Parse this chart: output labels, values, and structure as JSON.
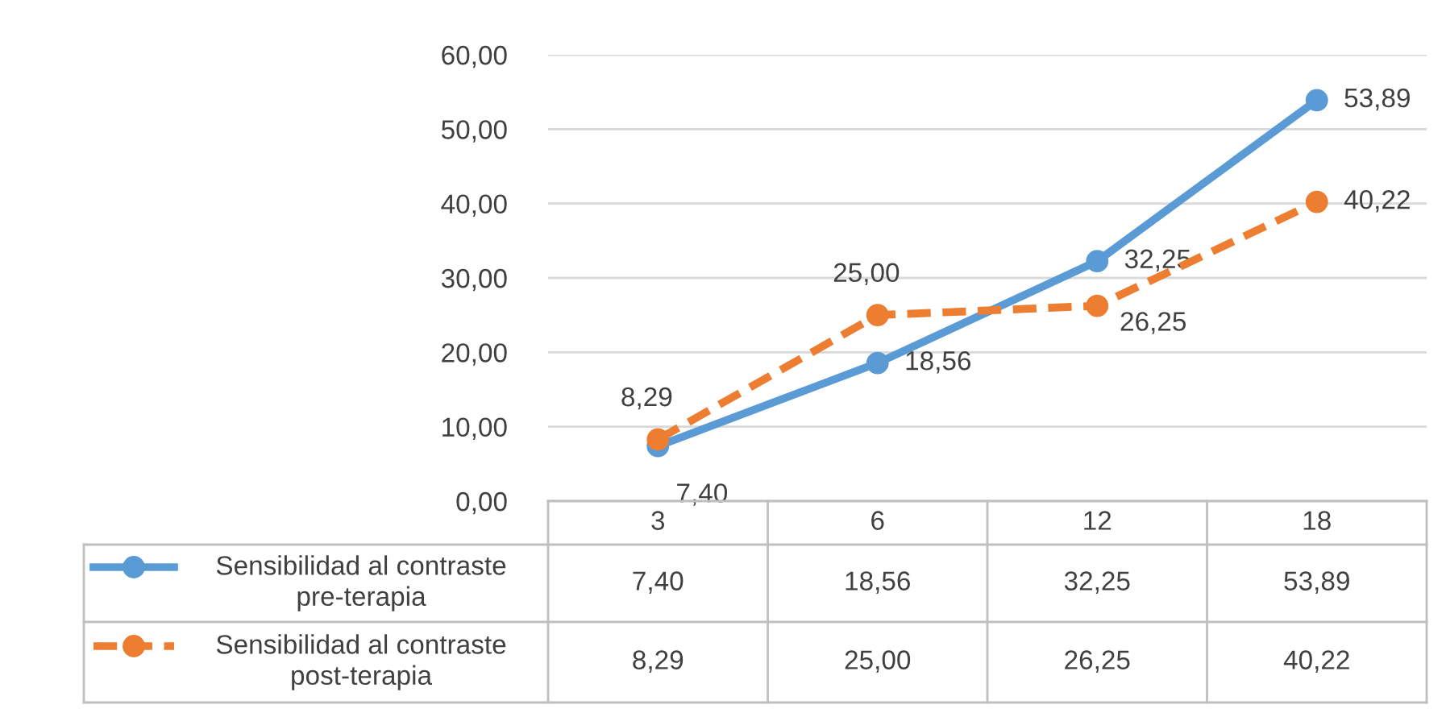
{
  "chart_data": {
    "type": "line",
    "categories": [
      "3",
      "6",
      "12",
      "18"
    ],
    "series": [
      {
        "name": "Sensibilidad al contraste pre-terapia",
        "color": "#5b9bd5",
        "values": [
          7.4,
          18.56,
          32.25,
          53.89
        ],
        "value_labels": [
          "7,40",
          "18,56",
          "32,25",
          "53,89"
        ],
        "line_style": "solid"
      },
      {
        "name": "Sensibilidad al contraste post-terapia",
        "color": "#ed7d31",
        "values": [
          8.29,
          25.0,
          26.25,
          40.22
        ],
        "value_labels": [
          "8,29",
          "25,00",
          "26,25",
          "40,22"
        ],
        "line_style": "dashed"
      }
    ],
    "ylim": [
      0,
      60
    ],
    "yticks": [
      {
        "value": 0,
        "label": "0,00"
      },
      {
        "value": 10,
        "label": "10,00"
      },
      {
        "value": 20,
        "label": "20,00"
      },
      {
        "value": 30,
        "label": "30,00"
      },
      {
        "value": 40,
        "label": "40,00"
      },
      {
        "value": 50,
        "label": "50,00"
      },
      {
        "value": 60,
        "label": "60,00"
      }
    ],
    "grid": "y",
    "marker": "circle",
    "legend": "bottom"
  }
}
